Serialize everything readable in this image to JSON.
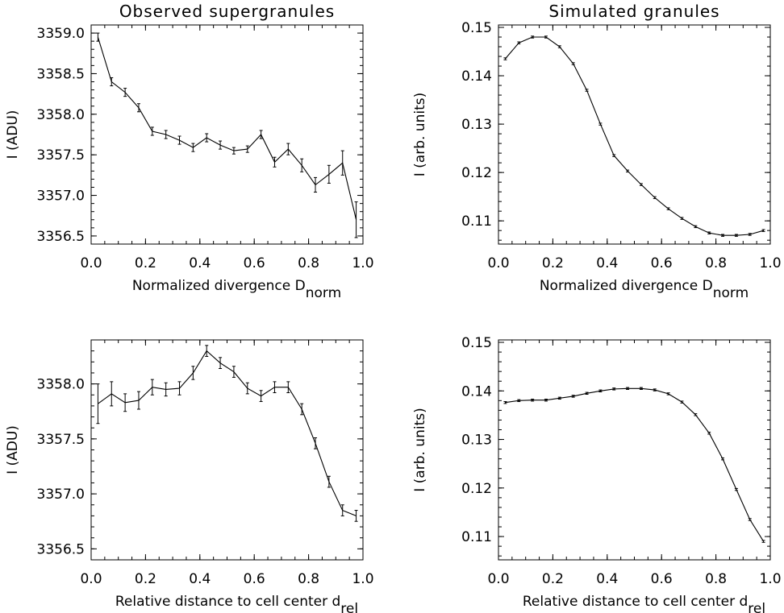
{
  "chart_data": [
    {
      "type": "line",
      "title": "Observed supergranules",
      "xlabel": "Normalized divergence D",
      "xlabel_sub": "norm",
      "ylabel": "I (ADU)",
      "xlim": [
        0.0,
        1.0
      ],
      "ylim": [
        3356.4,
        3359.1
      ],
      "xticks": [
        "0.0",
        "0.2",
        "0.4",
        "0.6",
        "0.8",
        "1.0"
      ],
      "yticks": [
        "3356.5",
        "3357.0",
        "3357.5",
        "3358.0",
        "3358.5",
        "3359.0"
      ],
      "x": [
        0.025,
        0.075,
        0.125,
        0.175,
        0.225,
        0.275,
        0.325,
        0.375,
        0.425,
        0.475,
        0.525,
        0.575,
        0.625,
        0.675,
        0.725,
        0.775,
        0.825,
        0.875,
        0.925,
        0.975
      ],
      "y": [
        3358.95,
        3358.4,
        3358.27,
        3358.08,
        3357.79,
        3357.75,
        3357.68,
        3357.59,
        3357.71,
        3357.62,
        3357.55,
        3357.57,
        3357.75,
        3357.41,
        3357.57,
        3357.37,
        3357.13,
        3357.26,
        3357.4,
        3356.7
      ],
      "err": [
        0.05,
        0.05,
        0.05,
        0.05,
        0.05,
        0.05,
        0.05,
        0.05,
        0.05,
        0.05,
        0.04,
        0.04,
        0.05,
        0.06,
        0.07,
        0.08,
        0.09,
        0.11,
        0.15,
        0.22
      ]
    },
    {
      "type": "line",
      "title": "Simulated granules",
      "xlabel": "Normalized divergence D",
      "xlabel_sub": "norm",
      "ylabel": "I (arb. units)",
      "xlim": [
        0.0,
        1.0
      ],
      "ylim": [
        0.1052,
        0.1505
      ],
      "xticks": [
        "0.0",
        "0.2",
        "0.4",
        "0.6",
        "0.8",
        "1.0"
      ],
      "yticks": [
        "0.11",
        "0.12",
        "0.13",
        "0.14",
        "0.15"
      ],
      "x": [
        0.025,
        0.075,
        0.125,
        0.175,
        0.225,
        0.275,
        0.325,
        0.375,
        0.425,
        0.475,
        0.525,
        0.575,
        0.625,
        0.675,
        0.725,
        0.775,
        0.825,
        0.875,
        0.925,
        0.975
      ],
      "y": [
        0.1435,
        0.1468,
        0.148,
        0.148,
        0.146,
        0.1425,
        0.137,
        0.13,
        0.1235,
        0.1203,
        0.1175,
        0.1148,
        0.1125,
        0.1105,
        0.1088,
        0.1075,
        0.107,
        0.107,
        0.1072,
        0.108
      ],
      "err": [
        0.0002,
        0.0002,
        0.0002,
        0.0002,
        0.0002,
        0.0002,
        0.0002,
        0.0002,
        0.0002,
        0.0002,
        0.0002,
        0.0002,
        0.0002,
        0.0002,
        0.0002,
        0.0002,
        0.0002,
        0.0002,
        0.0002,
        0.0002
      ]
    },
    {
      "type": "line",
      "title": "",
      "xlabel": "Relative distance to cell center d",
      "xlabel_sub": "rel",
      "ylabel": "I (ADU)",
      "xlim": [
        0.0,
        1.0
      ],
      "ylim": [
        3356.4,
        3358.4
      ],
      "xticks": [
        "0.0",
        "0.2",
        "0.4",
        "0.6",
        "0.8",
        "1.0"
      ],
      "yticks": [
        "3356.5",
        "3357.0",
        "3357.5",
        "3358.0"
      ],
      "x": [
        0.025,
        0.075,
        0.125,
        0.175,
        0.225,
        0.275,
        0.325,
        0.375,
        0.425,
        0.475,
        0.525,
        0.575,
        0.625,
        0.675,
        0.725,
        0.775,
        0.825,
        0.875,
        0.925,
        0.975
      ],
      "y": [
        3357.82,
        3357.91,
        3357.83,
        3357.85,
        3357.97,
        3357.95,
        3357.96,
        3358.1,
        3358.3,
        3358.19,
        3358.11,
        3357.96,
        3357.89,
        3357.97,
        3357.97,
        3357.77,
        3357.46,
        3357.11,
        3356.85,
        3356.8
      ],
      "err": [
        0.18,
        0.11,
        0.08,
        0.08,
        0.07,
        0.06,
        0.06,
        0.06,
        0.05,
        0.05,
        0.05,
        0.05,
        0.05,
        0.05,
        0.05,
        0.05,
        0.05,
        0.05,
        0.05,
        0.05
      ]
    },
    {
      "type": "line",
      "title": "",
      "xlabel": "Relative distance to cell center d",
      "xlabel_sub": "rel",
      "ylabel": "I (arb. units)",
      "xlim": [
        0.0,
        1.0
      ],
      "ylim": [
        0.1052,
        0.1505
      ],
      "xticks": [
        "0.0",
        "0.2",
        "0.4",
        "0.6",
        "0.8",
        "1.0"
      ],
      "yticks": [
        "0.11",
        "0.12",
        "0.13",
        "0.14",
        "0.15"
      ],
      "x": [
        0.025,
        0.075,
        0.125,
        0.175,
        0.225,
        0.275,
        0.325,
        0.375,
        0.425,
        0.475,
        0.525,
        0.575,
        0.625,
        0.675,
        0.725,
        0.775,
        0.825,
        0.875,
        0.925,
        0.975
      ],
      "y": [
        0.1376,
        0.138,
        0.1381,
        0.1381,
        0.1385,
        0.1389,
        0.1395,
        0.14,
        0.1404,
        0.1405,
        0.1405,
        0.1402,
        0.1394,
        0.1377,
        0.1351,
        0.1313,
        0.126,
        0.1197,
        0.1135,
        0.109
      ],
      "err": [
        0.0002,
        0.0002,
        0.0002,
        0.0002,
        0.0002,
        0.0002,
        0.0002,
        0.0002,
        0.0002,
        0.0002,
        0.0002,
        0.0002,
        0.0002,
        0.0002,
        0.0002,
        0.0002,
        0.0002,
        0.0002,
        0.0002,
        0.0002
      ]
    }
  ]
}
